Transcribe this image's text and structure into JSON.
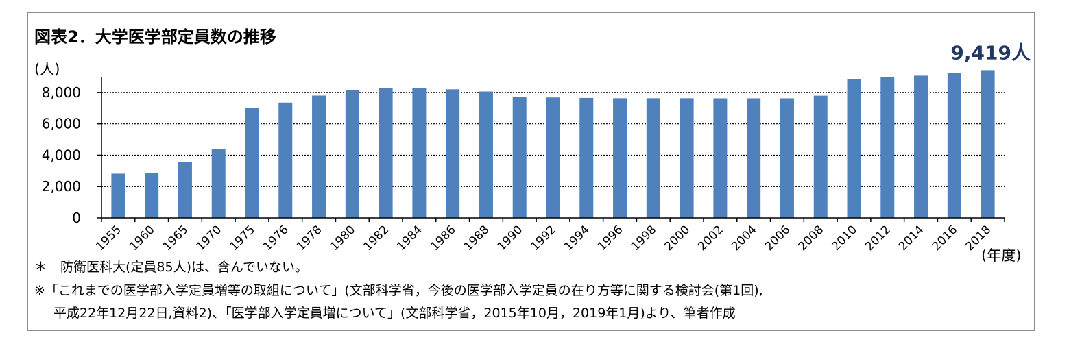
{
  "title": "図表2．大学医学部定員数の推移",
  "notes": [
    "＊　防衛医科大(定員85人)は、含んでいない。",
    "※「これまでの医学部入学定員増等の取組について」(文部科学省，今後の医学部入学定員の在り方等に関する検討会(第1回),",
    "平成22年12月22日,資料2)、「医学部入学定員増について」(文部科学省，2015年10月，2019年1月)より、筆者作成"
  ],
  "chart_data": {
    "type": "bar",
    "title": "図表2．大学医学部定員数の推移",
    "xlabel": "(年度)",
    "ylabel": "(人)",
    "ylim": [
      0,
      9000
    ],
    "yticks": [
      0,
      2000,
      4000,
      6000,
      8000
    ],
    "ytick_labels": [
      "0",
      "2,000",
      "4,000",
      "6,000",
      "8,000"
    ],
    "grid": "horizontal-dotted",
    "bar_color": "#4f81bd",
    "callout_color": "#1f3864",
    "categories": [
      "1955",
      "1960",
      "1965",
      "1970",
      "1975",
      "1976",
      "1978",
      "1980",
      "1982",
      "1984",
      "1986",
      "1988",
      "1990",
      "1992",
      "1994",
      "1996",
      "1998",
      "2000",
      "2002",
      "2004",
      "2006",
      "2008",
      "2010",
      "2012",
      "2014",
      "2016",
      "2018"
    ],
    "values": [
      2820,
      2840,
      3560,
      4380,
      7020,
      7350,
      7800,
      8160,
      8280,
      8280,
      8200,
      8060,
      7710,
      7680,
      7650,
      7630,
      7630,
      7630,
      7625,
      7625,
      7625,
      7793,
      8846,
      8991,
      9069,
      9262,
      9419
    ],
    "annotation": {
      "label": "9,419人",
      "category": "2018"
    }
  }
}
